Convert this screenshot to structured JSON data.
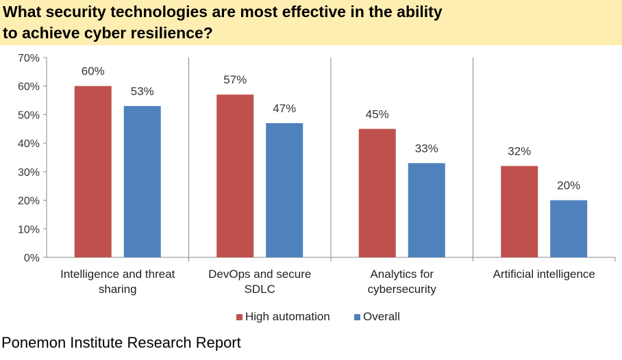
{
  "title": {
    "line1": "What security technologies are most effective in the ability",
    "line2": "to achieve cyber resilience?"
  },
  "footer": "Ponemon Institute Research Report",
  "chart_data": {
    "type": "bar",
    "categories": [
      [
        "Intelligence and threat",
        "sharing"
      ],
      [
        "DevOps and secure",
        "SDLC"
      ],
      [
        "Analytics for",
        "cybersecurity"
      ],
      [
        "Artificial intelligence"
      ]
    ],
    "series": [
      {
        "name": "High automation",
        "color": "#c0504d",
        "values": [
          60,
          57,
          45,
          32
        ]
      },
      {
        "name": "Overall",
        "color": "#4f81bd",
        "values": [
          53,
          47,
          33,
          20
        ]
      }
    ],
    "ylim": [
      0,
      70
    ],
    "yticks": [
      0,
      10,
      20,
      30,
      40,
      50,
      60,
      70
    ],
    "unit": "%",
    "grid": false,
    "legend": "bottom"
  }
}
